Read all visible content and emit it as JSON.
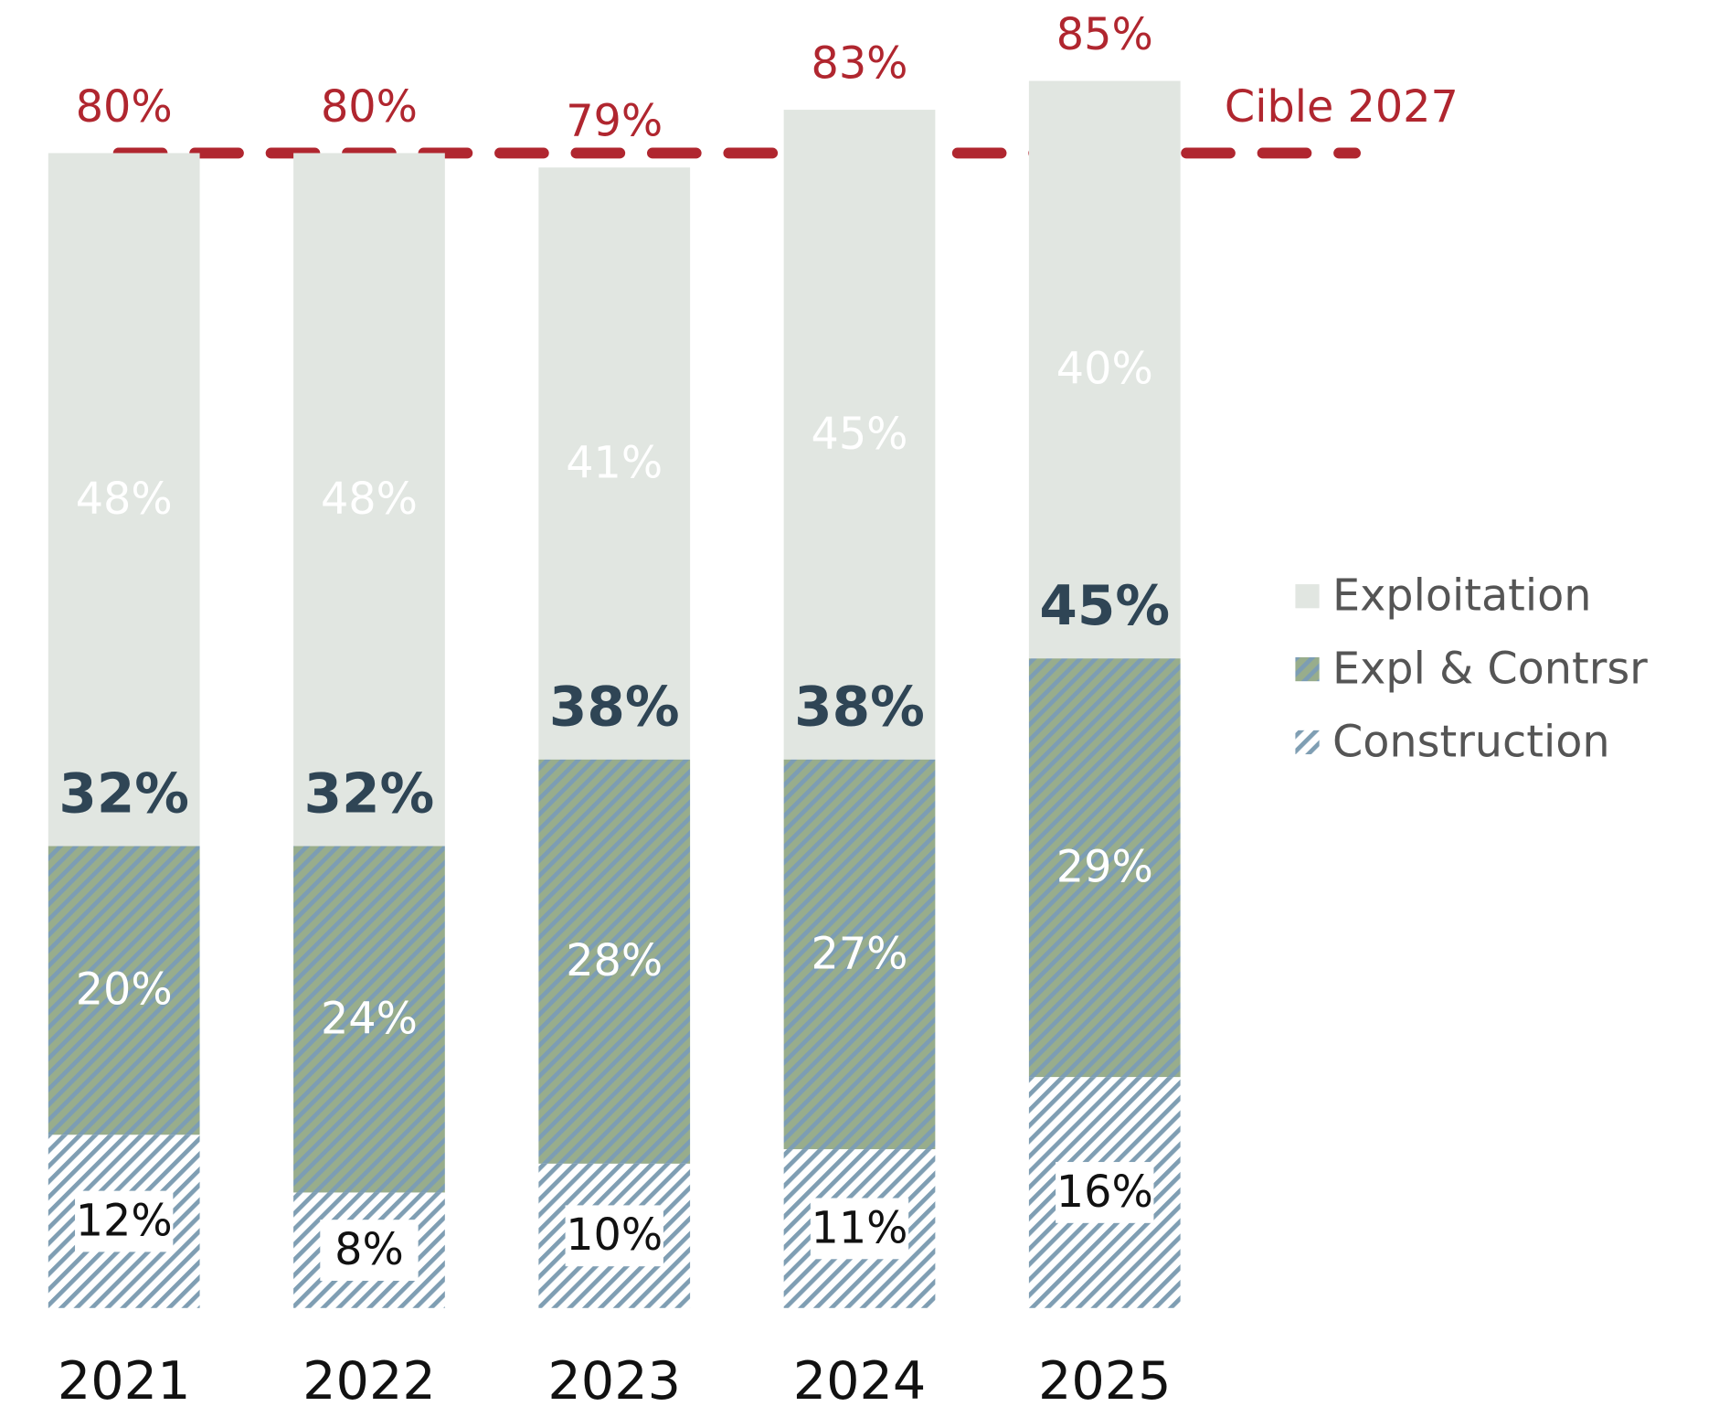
{
  "chart_data": {
    "type": "stacked_bar",
    "categories": [
      "2021",
      "2022",
      "2023",
      "2024",
      "2025"
    ],
    "series": [
      {
        "name": "Construction",
        "color": "#ffffff",
        "hatch": "#7f9eb3",
        "values": [
          12,
          8,
          10,
          11,
          16
        ],
        "value_labels": [
          "12%",
          "8%",
          "10%",
          "11%",
          "16%"
        ]
      },
      {
        "name": "Expl & Contrsr",
        "color": "#98ad8c",
        "hatch": "#7c9db4",
        "values": [
          20,
          24,
          28,
          27,
          29
        ],
        "value_labels": [
          "20%",
          "24%",
          "28%",
          "27%",
          "29%"
        ]
      },
      {
        "name": "Exploitation",
        "color": "#e1e6e1",
        "values": [
          48,
          48,
          41,
          45,
          40
        ],
        "value_labels": [
          "48%",
          "48%",
          "41%",
          "45%",
          "40%"
        ]
      }
    ],
    "subtotals": [
      32,
      32,
      38,
      38,
      45
    ],
    "subtotal_labels": [
      "32%",
      "32%",
      "38%",
      "38%",
      "45%"
    ],
    "totals": [
      80,
      80,
      79,
      83,
      85
    ],
    "total_labels": [
      "80%",
      "80%",
      "79%",
      "83%",
      "85%"
    ],
    "target": {
      "label": "Cible 2027",
      "value": 80,
      "color": "#b0262f"
    },
    "ylim": [
      0,
      90
    ]
  }
}
